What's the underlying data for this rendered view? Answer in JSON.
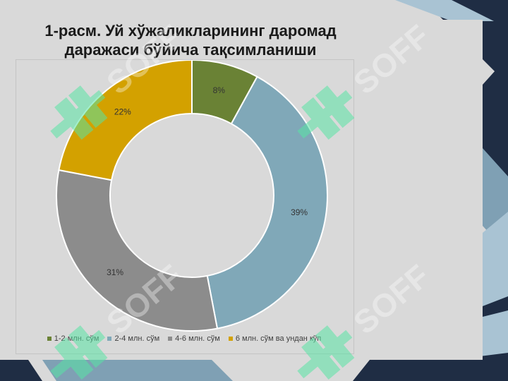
{
  "slide": {
    "title_line1": "1-расм. Уй хўжаликларининг даромад",
    "title_line2": "даражаси бўйича тақсимланиши",
    "watermark_text": "SOFF",
    "watermark_color": "#57e3a4",
    "deco_colors": [
      "#1f2d44",
      "#7fa0b4",
      "#a9c3d3",
      "#ffffff"
    ]
  },
  "chart_data": {
    "type": "donut",
    "title": "",
    "categories": [
      "1-2 млн. сўм",
      "2-4 млн. сўм",
      "4-6 млн. сўм",
      "6 млн. сўм ва ундан кўп"
    ],
    "values": [
      8,
      39,
      31,
      22
    ],
    "labels": [
      "8%",
      "39%",
      "31%",
      "22%"
    ],
    "colors": [
      "#6a8235",
      "#80a8b8",
      "#8c8c8c",
      "#d3a100"
    ],
    "legend_position": "bottom"
  }
}
